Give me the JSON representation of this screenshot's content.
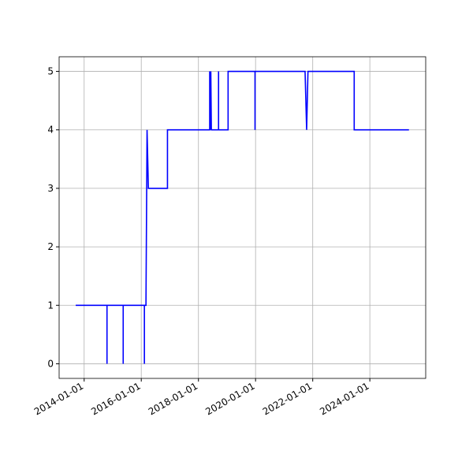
{
  "chart_data": {
    "type": "line",
    "x": [
      "2013-09-15",
      "2014-10-20",
      "2014-10-20",
      "2014-10-20",
      "2015-05-15",
      "2015-05-15",
      "2015-05-15",
      "2016-02-10",
      "2016-02-10",
      "2016-02-10",
      "2016-03-01",
      "2016-03-15",
      "2016-04-01",
      "2016-12-01",
      "2016-12-01",
      "2018-05-25",
      "2018-05-25",
      "2018-06-01",
      "2018-06-08",
      "2018-06-15",
      "2018-09-15",
      "2018-09-15",
      "2018-09-15",
      "2019-01-15",
      "2019-01-15",
      "2019-12-25",
      "2019-12-25",
      "2019-12-25",
      "2021-09-25",
      "2021-10-15",
      "2021-11-01",
      "2023-06-15",
      "2023-06-15",
      "2025-05-15"
    ],
    "series": [
      {
        "color": "#0000ff",
        "values": [
          1,
          1,
          0,
          1,
          1,
          0,
          1,
          1,
          0,
          1,
          1,
          4,
          3,
          3,
          4,
          4,
          5,
          4,
          5,
          4,
          4,
          5,
          4,
          4,
          5,
          5,
          4,
          5,
          5,
          4,
          5,
          5,
          4,
          4
        ]
      }
    ],
    "xlim": [
      "2013-02-15",
      "2025-12-15"
    ],
    "xticks": [
      "2014-01-01",
      "2016-01-01",
      "2018-01-01",
      "2020-01-01",
      "2022-01-01",
      "2024-01-01"
    ],
    "ylim": [
      -0.25,
      5.25
    ],
    "yticks": [
      0,
      1,
      2,
      3,
      4,
      5
    ],
    "grid": true
  }
}
